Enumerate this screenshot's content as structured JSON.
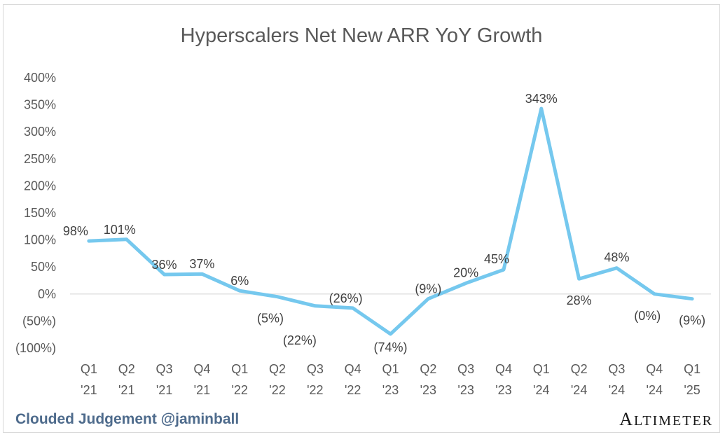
{
  "chart_data": {
    "type": "line",
    "title": "Hyperscalers Net New ARR YoY Growth",
    "xlabel": "",
    "ylabel": "",
    "ylim": [
      -100,
      400
    ],
    "yticks": [
      "(100%)",
      "(50%)",
      "0%",
      "50%",
      "100%",
      "150%",
      "200%",
      "250%",
      "300%",
      "350%",
      "400%"
    ],
    "categories": [
      [
        "Q1",
        "'21"
      ],
      [
        "Q2",
        "'21"
      ],
      [
        "Q3",
        "'21"
      ],
      [
        "Q4",
        "'21"
      ],
      [
        "Q1",
        "'22"
      ],
      [
        "Q2",
        "'22"
      ],
      [
        "Q3",
        "'22"
      ],
      [
        "Q4",
        "'22"
      ],
      [
        "Q1",
        "'23"
      ],
      [
        "Q2",
        "'23"
      ],
      [
        "Q3",
        "'23"
      ],
      [
        "Q4",
        "'23"
      ],
      [
        "Q1",
        "'24"
      ],
      [
        "Q2",
        "'24"
      ],
      [
        "Q3",
        "'24"
      ],
      [
        "Q4",
        "'24"
      ],
      [
        "Q1",
        "'25"
      ]
    ],
    "series": [
      {
        "values": [
          98,
          101,
          36,
          37,
          6,
          -5,
          -22,
          -26,
          -74,
          -9,
          20,
          45,
          343,
          28,
          48,
          0,
          -9
        ],
        "labels": [
          "98%",
          "101%",
          "36%",
          "37%",
          "6%",
          "(5%)",
          "(22%)",
          "(26%)",
          "(74%)",
          "(9%)",
          "20%",
          "45%",
          "343%",
          "28%",
          "48%",
          "(0%)",
          "(9%)"
        ],
        "color": "#75c8ee"
      }
    ],
    "grid": false,
    "zero_line_color": "#d9d9d9"
  },
  "footer": {
    "credit": "Clouded Judgement @jaminball",
    "brand": "Altimeter"
  }
}
